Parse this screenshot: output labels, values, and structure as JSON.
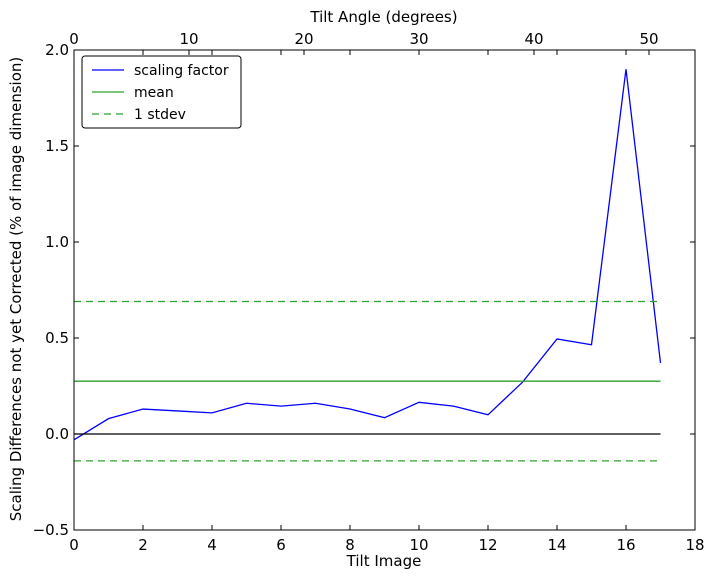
{
  "chart_data": {
    "type": "line",
    "title": "",
    "xlabel": "Tilt Image",
    "ylabel": "Scaling Differences not yet Corrected (% of image dimension)",
    "top_xlabel": "Tilt Angle (degrees)",
    "xlim": [
      0,
      18
    ],
    "ylim": [
      -0.5,
      2.0
    ],
    "top_xlim": [
      0,
      54
    ],
    "x_ticks": [
      0,
      2,
      4,
      6,
      8,
      10,
      12,
      14,
      16,
      18
    ],
    "x_tick_labels": [
      "0",
      "2",
      "4",
      "6",
      "8",
      "10",
      "12",
      "14",
      "16",
      "18"
    ],
    "y_ticks": [
      -0.5,
      0.0,
      0.5,
      1.0,
      1.5,
      2.0
    ],
    "y_tick_labels": [
      "−0.5",
      "0.0",
      "0.5",
      "1.0",
      "1.5",
      "2.0"
    ],
    "top_ticks": [
      0,
      10,
      20,
      30,
      40,
      50
    ],
    "top_tick_labels": [
      "0",
      "10",
      "20",
      "30",
      "40",
      "50"
    ],
    "grid": false,
    "legend_position": "top-left",
    "series": [
      {
        "name": "scaling factor",
        "color": "#0000ff",
        "style": "solid",
        "x": [
          0,
          1,
          2,
          3,
          4,
          5,
          6,
          7,
          8,
          9,
          10,
          11,
          12,
          13,
          14,
          15,
          16,
          17
        ],
        "y": [
          -0.03,
          0.08,
          0.13,
          0.12,
          0.11,
          0.16,
          0.145,
          0.16,
          0.13,
          0.085,
          0.165,
          0.145,
          0.1,
          0.27,
          0.495,
          0.465,
          1.9,
          0.37
        ]
      },
      {
        "name": "mean",
        "color": "#2ca02c",
        "style": "solid",
        "x": [
          0,
          17
        ],
        "y": [
          0.275,
          0.275
        ]
      },
      {
        "name": "1 stdev",
        "color": "#2ca02c",
        "style": "dashed",
        "x": [
          0,
          17
        ],
        "y": [
          0.69,
          0.69
        ]
      },
      {
        "name": "",
        "color": "#2ca02c",
        "style": "dashed",
        "x": [
          0,
          17
        ],
        "y": [
          -0.14,
          -0.14
        ]
      },
      {
        "name": "",
        "color": "#000000",
        "style": "solid",
        "x": [
          0,
          17
        ],
        "y": [
          0.0,
          0.0
        ]
      }
    ],
    "legend": [
      "scaling factor",
      "mean",
      "1 stdev"
    ]
  }
}
